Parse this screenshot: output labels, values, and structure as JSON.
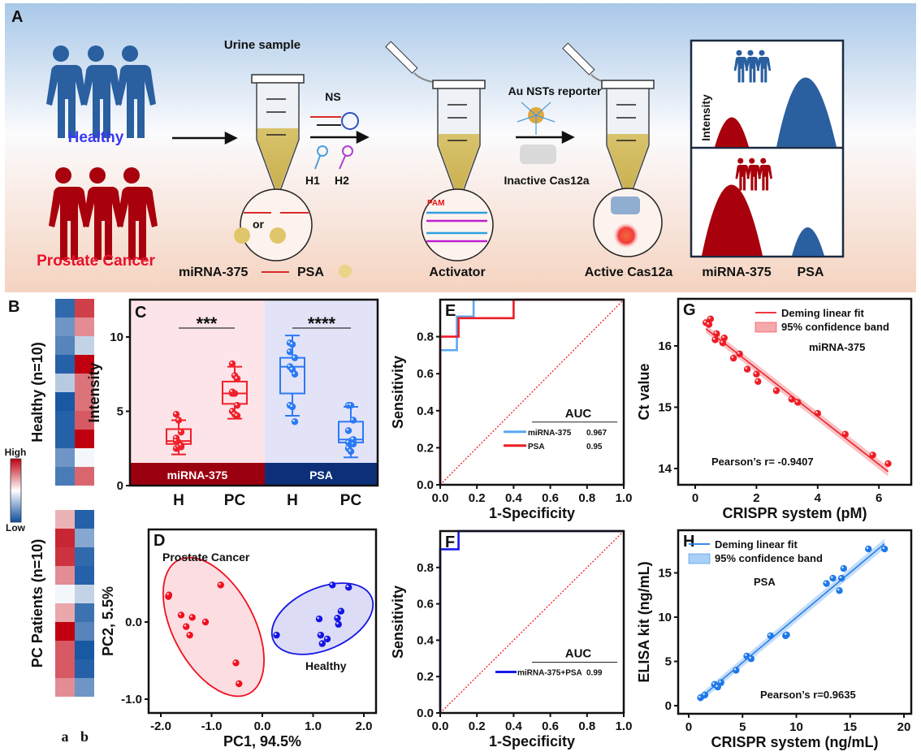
{
  "panelA": {
    "label": "A",
    "healthy": "Healthy",
    "cancer": "Prostate Cancer",
    "urine_sample": "Urine sample",
    "ns": "NS",
    "h1": "H1",
    "h2": "H2",
    "or": "or",
    "legend_mirna": "miRNA-375",
    "legend_psa": "PSA",
    "activator": "Activator",
    "pam": "PAM",
    "reporter": "Au NSTs reporter",
    "inactive": "Inactive Cas12a",
    "active": "Active Cas12a",
    "intensity": "Intensity",
    "out_mirna": "miRNA-375",
    "out_psa": "PSA",
    "colors": {
      "healthy": "#2a5fa0",
      "cancer": "#a8000c",
      "healthy_text": "#3a3af0",
      "cancer_text": "#e8102a"
    }
  },
  "chart_data": [
    {
      "panel": "B",
      "type": "heatmap",
      "columns": [
        "a",
        "b"
      ],
      "groups": [
        {
          "label": "Healthy  (n=10)",
          "a": [
            -0.85,
            -0.6,
            -0.7,
            -0.9,
            -0.3,
            -0.95,
            -0.9,
            -0.9,
            -0.6,
            -0.75
          ],
          "b": [
            0.75,
            0.45,
            -0.25,
            1.0,
            0.55,
            0.55,
            0.65,
            1.0,
            -0.05,
            0.6
          ]
        },
        {
          "label": "PC Patients  (n=10)",
          "a": [
            0.3,
            0.85,
            0.8,
            0.45,
            -0.05,
            0.35,
            1.0,
            0.65,
            0.65,
            0.45
          ],
          "b": [
            -0.9,
            -0.5,
            -0.85,
            -0.9,
            -0.25,
            -0.8,
            -0.7,
            -0.95,
            -0.9,
            -0.6
          ]
        }
      ],
      "colorbar": {
        "high": "High",
        "low": "Low",
        "high_color": "#c0000f",
        "low_color": "#0d4f9e"
      }
    },
    {
      "panel": "C",
      "type": "box",
      "ylabel": "Intensity",
      "ylim": [
        0,
        11
      ],
      "yticks": [
        0,
        5,
        10
      ],
      "categories": [
        "H",
        "PC",
        "H",
        "PC"
      ],
      "groups": [
        {
          "name": "miRNA-375",
          "color": "#f0202a",
          "band_color": "#9b0010",
          "bg": "#fde4e9",
          "significance": "***",
          "boxes": [
            {
              "min": 2.1,
              "q1": 2.8,
              "median": 3.0,
              "q3": 3.8,
              "max": 4.4,
              "points": [
                4.8,
                4.4,
                3.6,
                3.2,
                2.9,
                2.6,
                2.5,
                2.6,
                2.7,
                3.0
              ]
            },
            {
              "min": 4.5,
              "q1": 5.5,
              "median": 6.2,
              "q3": 7.0,
              "max": 8.0,
              "points": [
                8.2,
                7.4,
                7.2,
                6.2,
                6.2,
                5.4,
                5.0,
                4.8,
                4.7,
                6.3
              ]
            }
          ]
        },
        {
          "name": "PSA",
          "color": "#2a7af5",
          "band_color": "#0c2f78",
          "bg": "#e3e3f8",
          "significance": "****",
          "boxes": [
            {
              "min": 4.7,
              "q1": 6.2,
              "median": 8.0,
              "q3": 8.6,
              "max": 10.1,
              "points": [
                9.6,
                9.5,
                8.6,
                8.0,
                7.8,
                7.5,
                5.4,
                5.3,
                4.3,
                9.0
              ]
            },
            {
              "min": 1.9,
              "q1": 2.9,
              "median": 3.1,
              "q3": 4.3,
              "max": 5.3,
              "points": [
                5.4,
                5.4,
                4.4,
                3.7,
                3.0,
                2.8,
                2.5,
                2.3,
                3.1,
                2.9
              ]
            }
          ]
        }
      ]
    },
    {
      "panel": "D",
      "type": "scatter",
      "xlabel": "PC1, 94.5%",
      "ylabel": "PC2, 5.5%",
      "xlim": [
        -2.2,
        2.3
      ],
      "ylim": [
        -1.2,
        0.8
      ],
      "xticks": [
        "-2.0",
        "-1.0",
        "0.0",
        "1.0",
        "2.0"
      ],
      "yticks": [
        "0.0",
        "-1.0"
      ],
      "series": [
        {
          "name": "Prostate Cancer",
          "color": "#f0101e",
          "fill": "#fcdde2",
          "points": [
            [
              -1.85,
              0.33
            ],
            [
              -1.84,
              0.35
            ],
            [
              -0.82,
              0.48
            ],
            [
              -1.6,
              0.09
            ],
            [
              -1.38,
              0.06
            ],
            [
              -1.12,
              0.0
            ],
            [
              -1.5,
              -0.06
            ],
            [
              -1.43,
              -0.17
            ],
            [
              -0.52,
              -0.53
            ],
            [
              -0.46,
              -0.8
            ]
          ]
        },
        {
          "name": "Healthy",
          "color": "#1414e6",
          "fill": "#dcdcf6",
          "points": [
            [
              0.28,
              -0.17
            ],
            [
              1.12,
              0.04
            ],
            [
              1.38,
              0.48
            ],
            [
              1.7,
              0.45
            ],
            [
              1.55,
              0.14
            ],
            [
              1.48,
              0.05
            ],
            [
              1.5,
              -0.03
            ],
            [
              1.15,
              -0.17
            ],
            [
              1.28,
              -0.22
            ],
            [
              1.18,
              -0.28
            ]
          ]
        }
      ]
    },
    {
      "panel": "E",
      "type": "line",
      "xlabel": "1-Specificity",
      "ylabel": "Sensitivity",
      "xlim": [
        0,
        1
      ],
      "ylim": [
        0,
        1
      ],
      "xticks": [
        "0.0",
        "0.2",
        "0.4",
        "0.6",
        "0.8",
        "1.0"
      ],
      "yticks": [
        "0.0",
        "0.2",
        "0.4",
        "0.6",
        "0.8"
      ],
      "legend_title": "AUC",
      "series": [
        {
          "name": "miRNA-375",
          "auc": "0.967",
          "color": "#5aa8f0",
          "points": [
            [
              0,
              0
            ],
            [
              0,
              0.727
            ],
            [
              0.091,
              0.727
            ],
            [
              0.091,
              0.909
            ],
            [
              0.182,
              0.909
            ],
            [
              0.182,
              1
            ],
            [
              1,
              1
            ]
          ]
        },
        {
          "name": "PSA",
          "auc": "0.95",
          "color": "#ee1c25",
          "points": [
            [
              0,
              0
            ],
            [
              0,
              0.8
            ],
            [
              0.1,
              0.8
            ],
            [
              0.1,
              0.9
            ],
            [
              0.4,
              0.9
            ],
            [
              0.4,
              1
            ],
            [
              1,
              1
            ]
          ]
        }
      ]
    },
    {
      "panel": "F",
      "type": "line",
      "xlabel": "1-Specificity",
      "ylabel": "Sensitivity",
      "xlim": [
        0,
        1
      ],
      "ylim": [
        0,
        1
      ],
      "xticks": [
        "0.0",
        "0.2",
        "0.4",
        "0.6",
        "0.8",
        "1.0"
      ],
      "yticks": [
        "0.0",
        "0.2",
        "0.4",
        "0.6",
        "0.8"
      ],
      "legend_title": "AUC",
      "series": [
        {
          "name": "miRNA-375+PSA",
          "auc": "0.99",
          "color": "#1a1aee",
          "points": [
            [
              0,
              0
            ],
            [
              0,
              0.9
            ],
            [
              0.1,
              0.9
            ],
            [
              0.1,
              1
            ],
            [
              1,
              1
            ]
          ]
        }
      ]
    },
    {
      "panel": "G",
      "type": "scatter",
      "xlabel": "CRISPR system (pM)",
      "ylabel": "Ct value",
      "xlim": [
        -0.7,
        6.9
      ],
      "ylim": [
        13.75,
        16.6
      ],
      "xticks": [
        0,
        2,
        4,
        6
      ],
      "yticks": [
        14,
        15,
        16
      ],
      "annotation": "miRNA-375",
      "pearson": "Pearson’s r= -0.9407",
      "legend": [
        "Deming linear fit",
        "95% confidence band"
      ],
      "color": "#ee1c25",
      "band_color": "#f6a9ad",
      "fit": [
        [
          0.35,
          16.28
        ],
        [
          6.3,
          13.95
        ]
      ],
      "points": [
        [
          0.35,
          16.38
        ],
        [
          0.45,
          16.35
        ],
        [
          0.5,
          16.44
        ],
        [
          0.7,
          16.2
        ],
        [
          0.65,
          16.1
        ],
        [
          0.9,
          16.05
        ],
        [
          0.95,
          16.13
        ],
        [
          1.25,
          15.8
        ],
        [
          1.45,
          15.87
        ],
        [
          1.7,
          15.62
        ],
        [
          2.0,
          15.54
        ],
        [
          2.05,
          15.42
        ],
        [
          2.65,
          15.27
        ],
        [
          3.15,
          15.13
        ],
        [
          3.35,
          15.08
        ],
        [
          4.0,
          14.9
        ],
        [
          4.9,
          14.56
        ],
        [
          5.8,
          14.22
        ],
        [
          6.3,
          14.08
        ]
      ]
    },
    {
      "panel": "H",
      "type": "scatter",
      "xlabel": "CRISPR system (ng/mL)",
      "ylabel": "ELISA kit (ng/mL)",
      "xlim": [
        -1,
        20.7
      ],
      "ylim": [
        -0.9,
        19.8
      ],
      "xticks": [
        0,
        5,
        10,
        15,
        20
      ],
      "yticks": [
        0,
        5,
        10,
        15
      ],
      "annotation": "PSA",
      "pearson": "Pearson’s r=0.9635",
      "legend": [
        "Deming linear fit",
        "95% confidence band"
      ],
      "color": "#1e78e8",
      "band_color": "#a9cff6",
      "fit": [
        [
          1.0,
          0.8
        ],
        [
          18.2,
          18.3
        ]
      ],
      "points": [
        [
          1.1,
          0.9
        ],
        [
          1.5,
          1.2
        ],
        [
          2.4,
          2.4
        ],
        [
          2.7,
          2.1
        ],
        [
          3.0,
          2.6
        ],
        [
          4.4,
          4.0
        ],
        [
          5.4,
          5.6
        ],
        [
          5.8,
          5.3
        ],
        [
          7.6,
          7.9
        ],
        [
          9.0,
          7.9
        ],
        [
          9.1,
          8.0
        ],
        [
          12.8,
          13.8
        ],
        [
          13.4,
          14.4
        ],
        [
          14.0,
          13.0
        ],
        [
          14.2,
          14.4
        ],
        [
          14.4,
          15.5
        ],
        [
          16.7,
          17.7
        ],
        [
          18.2,
          17.7
        ]
      ]
    }
  ]
}
